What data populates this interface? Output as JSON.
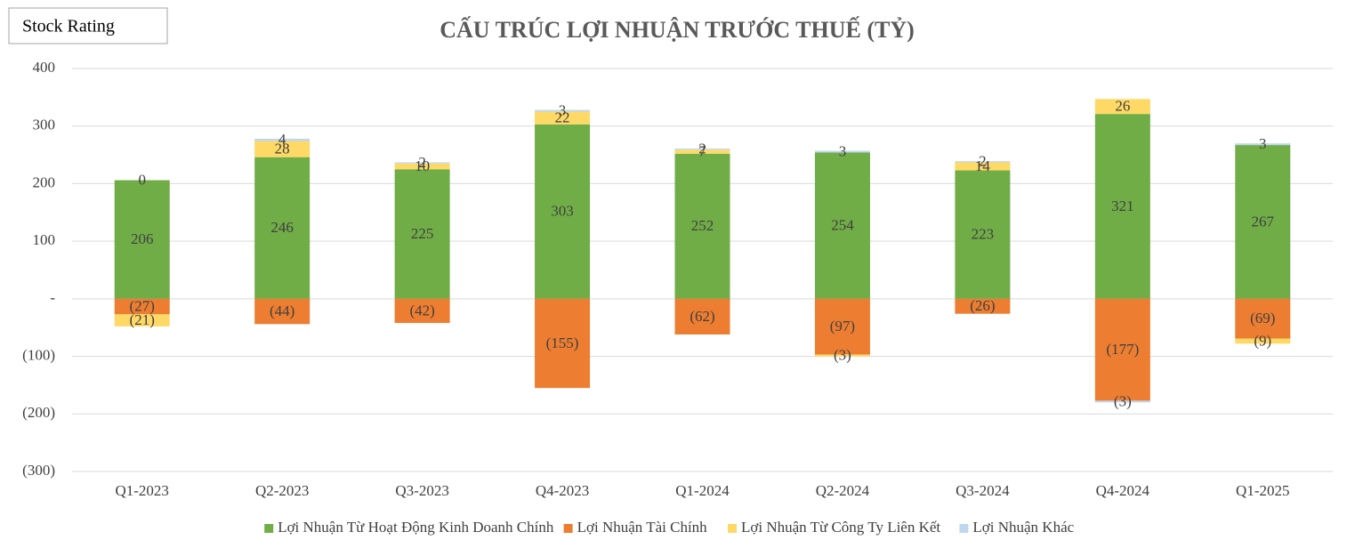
{
  "badge": "Stock Rating",
  "chart_data": {
    "type": "stacked-bar",
    "title": "CẤU TRÚC LỢI NHUẬN TRƯỚC THUẾ (TỶ)",
    "categories": [
      "Q1-2023",
      "Q2-2023",
      "Q3-2023",
      "Q4-2023",
      "Q1-2024",
      "Q2-2024",
      "Q3-2024",
      "Q4-2024",
      "Q1-2025"
    ],
    "series": [
      {
        "name": "Lợi Nhuận Từ Hoạt Động Kinh Doanh Chính",
        "color": "#70ad47",
        "values": [
          206,
          246,
          225,
          303,
          252,
          254,
          223,
          321,
          267
        ]
      },
      {
        "name": "Lợi Nhuận Tài Chính",
        "color": "#ed7d31",
        "values": [
          -27,
          -44,
          -42,
          -155,
          -62,
          -97,
          -26,
          -177,
          -69
        ],
        "value_labels": [
          "(27)",
          "(44)",
          "(42)",
          "(155)",
          "(62)",
          "(97)",
          "(26)",
          "(177)",
          "(69)"
        ]
      },
      {
        "name": "Lợi Nhuận Từ Công Ty Liên Kết",
        "color": "#ffd966",
        "values": [
          -21,
          28,
          10,
          22,
          7,
          -3,
          14,
          26,
          -9
        ],
        "value_labels": [
          "(21)",
          "28",
          "10",
          "22",
          "7",
          "(3)",
          "14",
          "26",
          "(9)"
        ]
      },
      {
        "name": "Lợi Nhuận Khác",
        "color": "#bdd7ee",
        "values": [
          0,
          4,
          2,
          3,
          2,
          3,
          2,
          -3,
          3
        ],
        "value_labels": [
          "0",
          "4",
          "2",
          "3",
          "2",
          "3",
          "2",
          "(3)",
          "3"
        ]
      }
    ],
    "ylim": [
      -300,
      400
    ],
    "yticks": [
      {
        "value": -300,
        "label": "(300)"
      },
      {
        "value": -200,
        "label": "(200)"
      },
      {
        "value": -100,
        "label": "(100)"
      },
      {
        "value": 0,
        "label": "-"
      },
      100,
      200,
      300,
      400
    ],
    "grid": true,
    "legend": "bottom"
  }
}
